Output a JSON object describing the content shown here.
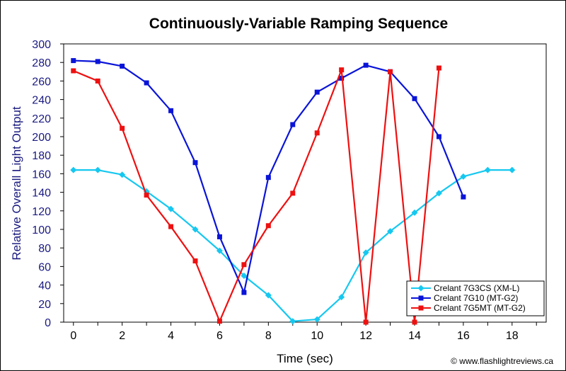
{
  "chart_data": {
    "type": "line",
    "title": "Continuously-Variable Ramping Sequence",
    "xlabel": "Time (sec)",
    "ylabel": "Relative Overall Light Output",
    "xlim": [
      -0.4,
      19.4
    ],
    "ylim": [
      0,
      300
    ],
    "xticks": [
      0,
      2,
      4,
      6,
      8,
      10,
      12,
      14,
      16,
      18
    ],
    "yticks": [
      0,
      20,
      40,
      60,
      80,
      100,
      120,
      140,
      160,
      180,
      200,
      220,
      240,
      260,
      280,
      300
    ],
    "grid": false,
    "legend_position": "bottom-right",
    "series": [
      {
        "name": "Crelant 7G3CS (XM-L)",
        "color": "#16c8f0",
        "marker": "diamond",
        "x": [
          0,
          1,
          2,
          3,
          4,
          5,
          6,
          7,
          8,
          9,
          10,
          11,
          12,
          13,
          14,
          15,
          16,
          17,
          18
        ],
        "y": [
          164,
          164,
          159,
          141,
          122,
          100,
          77,
          50,
          29,
          1,
          3,
          27,
          75,
          98,
          118,
          139,
          157,
          164,
          164
        ]
      },
      {
        "name": "Crelant 7G10 (MT-G2)",
        "color": "#0a14d8",
        "marker": "square",
        "x": [
          0,
          1,
          2,
          3,
          4,
          5,
          6,
          7,
          8,
          9,
          10,
          11,
          12,
          13,
          14,
          15,
          16
        ],
        "y": [
          282,
          281,
          276,
          258,
          228,
          172,
          92,
          32,
          156,
          213,
          248,
          263,
          277,
          270,
          241,
          200,
          135
        ]
      },
      {
        "name": "Crelant 7G5MT (MT-G2)",
        "color": "#ee1010",
        "marker": "square",
        "x": [
          0,
          1,
          2,
          3,
          4,
          5,
          6,
          7,
          8,
          9,
          10,
          11,
          12,
          13,
          14,
          15
        ],
        "y": [
          271,
          260,
          209,
          137,
          103,
          66,
          1,
          62,
          104,
          139,
          204,
          272,
          0,
          270,
          0,
          274
        ]
      }
    ]
  },
  "credit": "© www.flashlightreviews.ca"
}
